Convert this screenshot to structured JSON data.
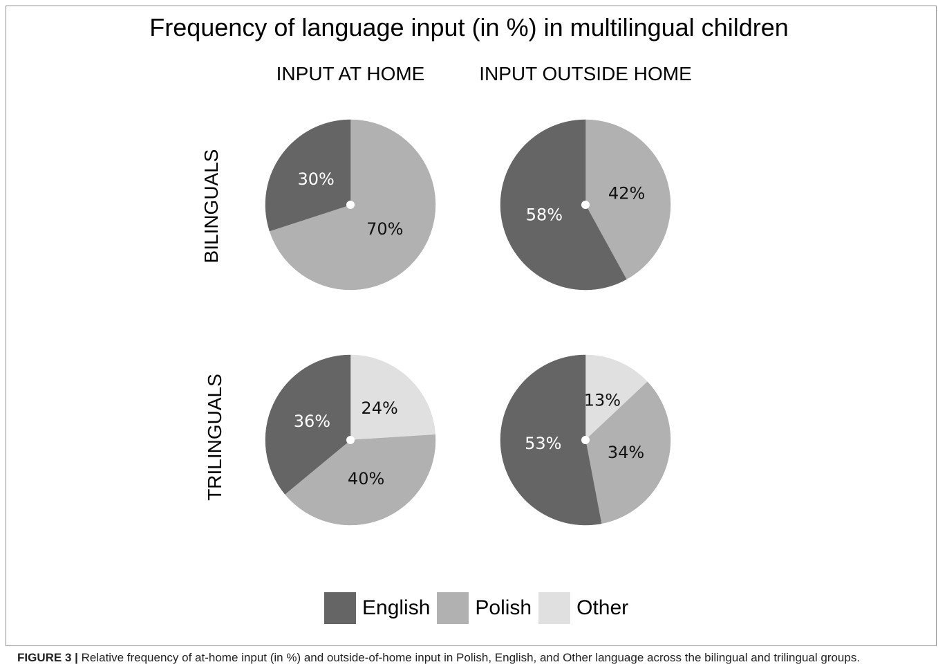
{
  "caption": {
    "label": "FIGURE 3 |",
    "text": "Relative frequency of at-home input (in %) and outside-of-home input in Polish, English, and Other language across the bilingual and trilingual groups."
  },
  "colors": {
    "English": "#656565",
    "Polish": "#b1b1b1",
    "Other": "#e0e0e0"
  },
  "chart_data": {
    "type": "pie",
    "title": "Frequency of language input (in %) in multilingual children",
    "columns": [
      "INPUT AT HOME",
      "INPUT OUTSIDE HOME"
    ],
    "rows": [
      "BILINGUALS",
      "TRILINGUALS"
    ],
    "legend": {
      "position": "bottom-center",
      "entries": [
        "English",
        "Polish",
        "Other"
      ]
    },
    "pies": [
      {
        "row": "BILINGUALS",
        "column": "INPUT AT HOME",
        "slices": [
          {
            "category": "Polish",
            "value": 70,
            "label": "70%"
          },
          {
            "category": "English",
            "value": 30,
            "label": "30%"
          }
        ]
      },
      {
        "row": "BILINGUALS",
        "column": "INPUT OUTSIDE HOME",
        "slices": [
          {
            "category": "Polish",
            "value": 42,
            "label": "42%"
          },
          {
            "category": "English",
            "value": 58,
            "label": "58%"
          }
        ]
      },
      {
        "row": "TRILINGUALS",
        "column": "INPUT AT HOME",
        "slices": [
          {
            "category": "Other",
            "value": 24,
            "label": "24%"
          },
          {
            "category": "Polish",
            "value": 40,
            "label": "40%"
          },
          {
            "category": "English",
            "value": 36,
            "label": "36%"
          }
        ]
      },
      {
        "row": "TRILINGUALS",
        "column": "INPUT OUTSIDE HOME",
        "slices": [
          {
            "category": "Other",
            "value": 13,
            "label": "13%"
          },
          {
            "category": "Polish",
            "value": 34,
            "label": "34%"
          },
          {
            "category": "English",
            "value": 53,
            "label": "53%"
          }
        ]
      }
    ]
  }
}
